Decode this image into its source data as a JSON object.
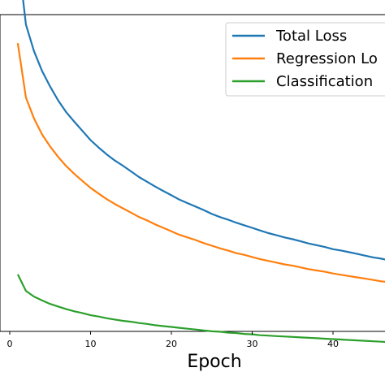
{
  "chart_data": {
    "type": "line",
    "title": "",
    "xlabel": "Epoch",
    "ylabel": "",
    "x_ticks": [
      0,
      10,
      20,
      30,
      40
    ],
    "x_tick_labels": [
      "0",
      "10",
      "20",
      "30",
      "40"
    ],
    "xlim": [
      -1,
      47
    ],
    "ylim": [
      0.03,
      1.0
    ],
    "grid": false,
    "legend_position": "top-right",
    "x": [
      1,
      2,
      3,
      4,
      5,
      6,
      7,
      8,
      9,
      10,
      11,
      12,
      13,
      14,
      15,
      16,
      17,
      18,
      19,
      20,
      21,
      22,
      23,
      24,
      25,
      26,
      27,
      28,
      29,
      30,
      31,
      32,
      33,
      34,
      35,
      36,
      37,
      38,
      39,
      40,
      41,
      42,
      43,
      44,
      45,
      46,
      47
    ],
    "series": [
      {
        "name": "Total Loss",
        "color": "#1f77b4",
        "values": [
          0.944,
          0.781,
          0.72,
          0.674,
          0.638,
          0.606,
          0.579,
          0.557,
          0.536,
          0.515,
          0.498,
          0.482,
          0.468,
          0.456,
          0.443,
          0.43,
          0.419,
          0.408,
          0.398,
          0.388,
          0.378,
          0.37,
          0.362,
          0.354,
          0.345,
          0.338,
          0.332,
          0.325,
          0.319,
          0.313,
          0.307,
          0.301,
          0.296,
          0.291,
          0.287,
          0.282,
          0.277,
          0.273,
          0.269,
          0.264,
          0.261,
          0.257,
          0.253,
          0.249,
          0.245,
          0.242,
          0.238
        ]
      },
      {
        "name": "Regression Lo",
        "color": "#ff7f0e",
        "values": [
          0.738,
          0.613,
          0.565,
          0.528,
          0.5,
          0.476,
          0.455,
          0.437,
          0.421,
          0.405,
          0.392,
          0.379,
          0.368,
          0.358,
          0.348,
          0.338,
          0.33,
          0.321,
          0.313,
          0.305,
          0.297,
          0.291,
          0.285,
          0.278,
          0.272,
          0.266,
          0.261,
          0.255,
          0.251,
          0.246,
          0.241,
          0.237,
          0.233,
          0.229,
          0.226,
          0.222,
          0.218,
          0.215,
          0.212,
          0.208,
          0.205,
          0.202,
          0.199,
          0.196,
          0.193,
          0.19,
          0.188
        ]
      },
      {
        "name": "Classification",
        "color": "#2ca02c",
        "values": [
          0.206,
          0.168,
          0.155,
          0.146,
          0.138,
          0.132,
          0.126,
          0.121,
          0.117,
          0.112,
          0.109,
          0.105,
          0.102,
          0.099,
          0.097,
          0.094,
          0.092,
          0.089,
          0.087,
          0.085,
          0.083,
          0.081,
          0.079,
          0.077,
          0.075,
          0.074,
          0.072,
          0.071,
          0.069,
          0.068,
          0.066,
          0.065,
          0.064,
          0.063,
          0.062,
          0.061,
          0.06,
          0.059,
          0.058,
          0.057,
          0.056,
          0.055,
          0.054,
          0.053,
          0.052,
          0.051,
          0.05
        ]
      }
    ]
  }
}
